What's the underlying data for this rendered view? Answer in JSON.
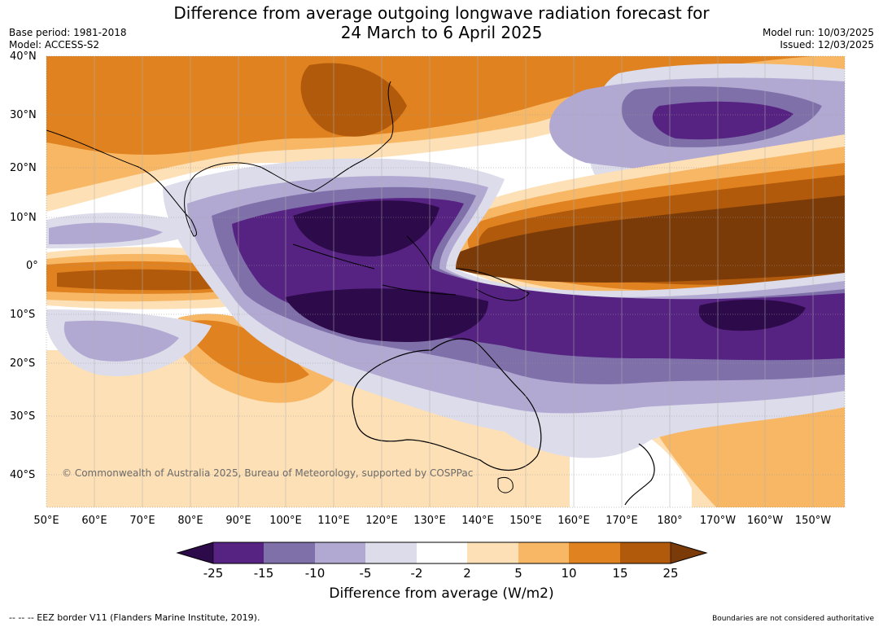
{
  "header": {
    "title_line1": "Difference from average outgoing longwave radiation forecast for",
    "title_line2": "24 March to 6 April 2025",
    "base_period": "Base period: 1981-2018",
    "model": "Model: ACCESS-S2",
    "model_run": "Model run: 10/03/2025",
    "issued": "Issued: 12/03/2025"
  },
  "map": {
    "lat_labels": [
      "40°N",
      "30°N",
      "20°N",
      "10°N",
      "0°",
      "10°S",
      "20°S",
      "30°S",
      "40°S"
    ],
    "lon_labels": [
      "50°E",
      "60°E",
      "70°E",
      "80°E",
      "90°E",
      "100°E",
      "110°E",
      "120°E",
      "130°E",
      "140°E",
      "150°E",
      "160°E",
      "170°E",
      "180°",
      "170°W",
      "160°W",
      "150°W"
    ],
    "copyright": "© Commonwealth of Australia 2025, Bureau of Meteorology, supported by COSPPac",
    "palette": {
      "neg25": "#2d0a4a",
      "neg15": "#572383",
      "neg10": "#7f70aa",
      "neg5": "#b1a9d1",
      "neg2": "#dcdcea",
      "zero": "#ffffff",
      "pos2": "#fde0b6",
      "pos5": "#f8b765",
      "pos10": "#e0821f",
      "pos15": "#b15a0c",
      "pos25": "#7b3b09"
    }
  },
  "colorbar": {
    "ticks": [
      "-25",
      "-15",
      "-10",
      "-5",
      "-2",
      "2",
      "5",
      "10",
      "15",
      "25"
    ],
    "title": "Difference from average (W/m2)"
  },
  "footer": {
    "eez_note": "--  --  -- EEZ border V11 (Flanders Marine Institute, 2019).",
    "disclaimer": "Boundaries are not considered authoritative"
  }
}
